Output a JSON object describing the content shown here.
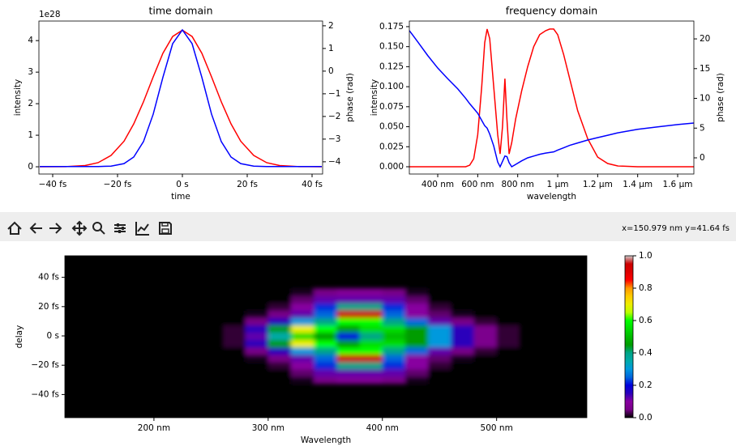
{
  "chart_data": [
    {
      "type": "line",
      "title": "time domain",
      "xlabel": "time",
      "ylabel": "intensity",
      "y2label": "phase (rad)",
      "y_offset_label": "1e28",
      "x": [
        -44,
        -36,
        -30,
        -26,
        -22,
        -18,
        -15,
        -12,
        -9,
        -6,
        -3,
        0,
        3,
        6,
        9,
        12,
        15,
        18,
        22,
        26,
        30,
        36,
        43
      ],
      "series": [
        {
          "color": "#ff0000",
          "values": [
            0,
            0.005,
            0.04,
            0.13,
            0.36,
            0.81,
            1.36,
            2.06,
            2.85,
            3.6,
            4.13,
            4.33,
            4.13,
            3.6,
            2.85,
            2.06,
            1.36,
            0.81,
            0.36,
            0.13,
            0.04,
            0.005,
            0
          ]
        },
        {
          "color": "#0000ff",
          "axis": "y2",
          "values": [
            -4.21,
            -4.21,
            -4.21,
            -4.21,
            -4.19,
            -4.08,
            -3.79,
            -3.11,
            -1.9,
            -0.27,
            1.21,
            1.82,
            1.21,
            -0.27,
            -1.9,
            -3.11,
            -3.79,
            -4.08,
            -4.19,
            -4.21,
            -4.21,
            -4.21,
            -4.21
          ]
        }
      ],
      "xlim": [
        -44.25,
        43.25
      ],
      "xticks": [
        {
          "value": -40,
          "label": "−40 fs"
        },
        {
          "value": -20,
          "label": "−20 fs"
        },
        {
          "value": 0,
          "label": "0 s"
        },
        {
          "value": 20,
          "label": "20 fs"
        },
        {
          "value": 40,
          "label": "40 fs"
        }
      ],
      "ylim": [
        -0.23,
        4.62
      ],
      "yticks": [
        0,
        1,
        2,
        3,
        4
      ],
      "y2lim": [
        -4.54,
        2.21
      ],
      "y2ticks": [
        {
          "value": -4,
          "label": "−4"
        },
        {
          "value": -3,
          "label": "−3"
        },
        {
          "value": -2,
          "label": "−2"
        },
        {
          "value": -1,
          "label": "−1"
        },
        0,
        1,
        2
      ]
    },
    {
      "type": "line",
      "title": "frequency domain",
      "xlabel": "wavelength",
      "ylabel": "intensity",
      "y2label": "phase (rad)",
      "x": [
        258,
        300,
        350,
        400,
        450,
        500,
        540,
        560,
        580,
        600,
        620,
        635,
        647,
        660,
        680,
        700,
        712,
        724,
        736,
        746,
        757,
        770,
        790,
        820,
        850,
        880,
        910,
        940,
        960,
        980,
        1000,
        1030,
        1060,
        1100,
        1150,
        1200,
        1250,
        1300,
        1400,
        1500,
        1600,
        1681
      ],
      "series": [
        {
          "color": "#ff0000",
          "values": [
            0,
            0,
            0,
            0,
            0,
            0,
            0,
            0.002,
            0.01,
            0.04,
            0.1,
            0.155,
            0.172,
            0.16,
            0.1,
            0.04,
            0.016,
            0.05,
            0.11,
            0.06,
            0.016,
            0.03,
            0.06,
            0.095,
            0.125,
            0.15,
            0.165,
            0.17,
            0.172,
            0.172,
            0.165,
            0.14,
            0.11,
            0.07,
            0.035,
            0.012,
            0.004,
            0.001,
            0,
            0,
            0,
            0
          ]
        },
        {
          "color": "#0000ff",
          "axis": "y2",
          "values": [
            21.4,
            19.5,
            17.2,
            15.1,
            13.3,
            11.6,
            10.0,
            9.1,
            8.3,
            7.5,
            6.3,
            5.4,
            5.0,
            4.0,
            2.0,
            -0.7,
            -1.5,
            -0.6,
            0.3,
            0.2,
            -0.8,
            -1.5,
            -1.1,
            -0.5,
            0.0,
            0.3,
            0.6,
            0.8,
            0.9,
            1.0,
            1.3,
            1.7,
            2.1,
            2.5,
            3.0,
            3.4,
            3.8,
            4.2,
            4.8,
            5.2,
            5.6,
            5.85
          ]
        }
      ],
      "xlim": [
        258,
        1681
      ],
      "xticks": [
        {
          "value": 400,
          "label": "400 nm"
        },
        {
          "value": 600,
          "label": "600 nm"
        },
        {
          "value": 800,
          "label": "800 nm"
        },
        {
          "value": 1000,
          "label": "1 µm"
        },
        {
          "value": 1200,
          "label": "1.2 µm"
        },
        {
          "value": 1400,
          "label": "1.4 µm"
        },
        {
          "value": 1600,
          "label": "1.6 µm"
        }
      ],
      "ylim": [
        -0.0091,
        0.182
      ],
      "yticks": [
        {
          "value": 0,
          "label": "0.000"
        },
        {
          "value": 0.025,
          "label": "0.025"
        },
        {
          "value": 0.05,
          "label": "0.050"
        },
        {
          "value": 0.075,
          "label": "0.075"
        },
        {
          "value": 0.1,
          "label": "0.100"
        },
        {
          "value": 0.125,
          "label": "0.125"
        },
        {
          "value": 0.15,
          "label": "0.150"
        },
        {
          "value": 0.175,
          "label": "0.175"
        }
      ],
      "y2lim": [
        -2.72,
        23.0
      ],
      "y2ticks": [
        0,
        5,
        10,
        15,
        20
      ]
    },
    {
      "type": "heatmap",
      "xlabel": "Wavelength",
      "ylabel": "delay",
      "x": [
        270,
        290,
        310,
        330,
        350,
        370,
        390,
        410,
        430,
        450,
        470,
        490,
        510
      ],
      "y": [
        -30,
        -25,
        -20,
        -15,
        -10,
        -5,
        0,
        5,
        10,
        15,
        20,
        25,
        30
      ],
      "z": [
        [
          0,
          0,
          0,
          0.01,
          0.05,
          0.08,
          0.08,
          0.05,
          0.01,
          0,
          0,
          0,
          0
        ],
        [
          0,
          0,
          0,
          0.04,
          0.12,
          0.12,
          0.12,
          0.12,
          0.04,
          0,
          0,
          0,
          0
        ],
        [
          0,
          0,
          0.02,
          0.1,
          0.22,
          0.4,
          0.4,
          0.22,
          0.1,
          0.02,
          0,
          0,
          0
        ],
        [
          0,
          0.01,
          0.05,
          0.12,
          0.25,
          0.95,
          0.95,
          0.25,
          0.1,
          0.04,
          0.01,
          0,
          0
        ],
        [
          0,
          0.05,
          0.15,
          0.3,
          0.4,
          0.6,
          0.6,
          0.4,
          0.25,
          0.12,
          0.05,
          0.02,
          0
        ],
        [
          0.02,
          0.15,
          0.45,
          0.7,
          0.6,
          0.45,
          0.55,
          0.55,
          0.45,
          0.3,
          0.15,
          0.06,
          0.02
        ],
        [
          0.02,
          0.12,
          0.35,
          0.55,
          0.45,
          0.2,
          0.4,
          0.5,
          0.45,
          0.3,
          0.15,
          0.06,
          0.02
        ],
        [
          0.02,
          0.15,
          0.45,
          0.7,
          0.6,
          0.45,
          0.55,
          0.55,
          0.45,
          0.3,
          0.15,
          0.06,
          0.02
        ],
        [
          0,
          0.05,
          0.15,
          0.3,
          0.4,
          0.6,
          0.6,
          0.4,
          0.25,
          0.12,
          0.05,
          0.02,
          0
        ],
        [
          0,
          0.01,
          0.05,
          0.12,
          0.25,
          0.95,
          0.95,
          0.25,
          0.1,
          0.04,
          0.01,
          0,
          0
        ],
        [
          0,
          0,
          0.02,
          0.1,
          0.22,
          0.4,
          0.4,
          0.22,
          0.1,
          0.02,
          0,
          0,
          0
        ],
        [
          0,
          0,
          0,
          0.04,
          0.12,
          0.12,
          0.12,
          0.12,
          0.04,
          0,
          0,
          0,
          0
        ],
        [
          0,
          0,
          0,
          0.01,
          0.05,
          0.08,
          0.08,
          0.05,
          0.01,
          0,
          0,
          0,
          0
        ]
      ],
      "xlim": [
        122,
        579
      ],
      "xticks": [
        {
          "value": 200,
          "label": "200 nm"
        },
        {
          "value": 300,
          "label": "300 nm"
        },
        {
          "value": 400,
          "label": "400 nm"
        },
        {
          "value": 500,
          "label": "500 nm"
        }
      ],
      "ylim": [
        -55.8,
        54.7
      ],
      "yticks": [
        {
          "value": -40,
          "label": "−40 fs"
        },
        {
          "value": -20,
          "label": "−20 fs"
        },
        {
          "value": 0,
          "label": "0 s"
        },
        {
          "value": 20,
          "label": "20 fs"
        },
        {
          "value": 40,
          "label": "40 fs"
        }
      ],
      "clim": [
        0,
        1
      ],
      "cticks": [
        {
          "value": 0,
          "label": "0.0"
        },
        0.2,
        0.4,
        0.6,
        0.8,
        {
          "value": 1,
          "label": "1.0"
        }
      ]
    }
  ],
  "toolbar": {
    "status": "x=150.979 nm y=41.64 fs"
  }
}
